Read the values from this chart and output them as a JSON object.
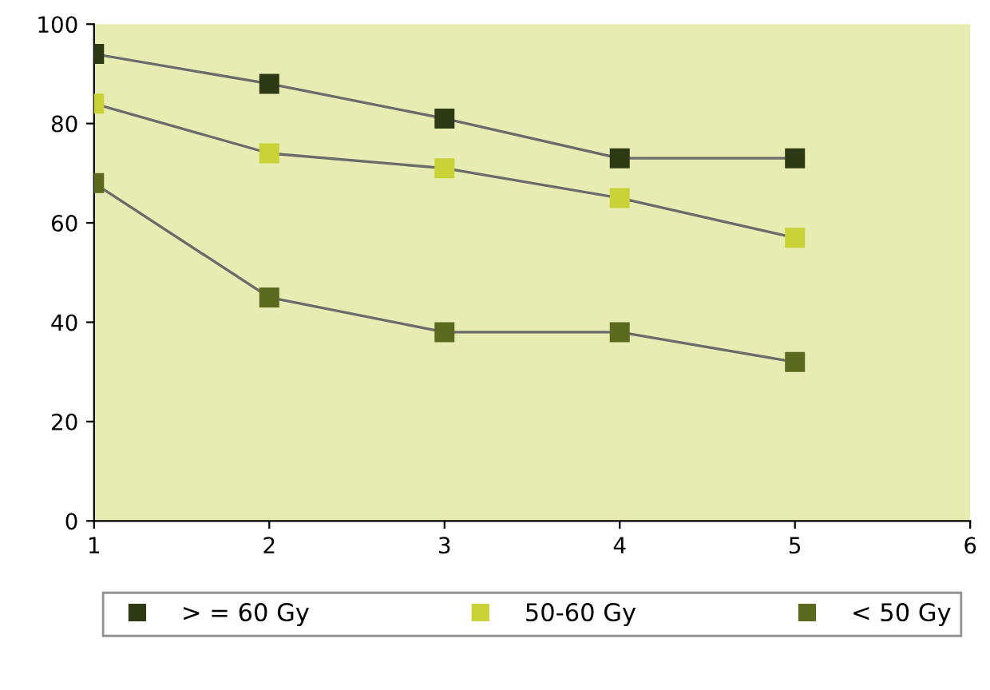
{
  "chart_data": {
    "type": "line",
    "x": [
      1,
      2,
      3,
      4,
      5
    ],
    "xlim": [
      1,
      6
    ],
    "xticks": [
      1,
      2,
      3,
      4,
      5,
      6
    ],
    "ylim": [
      0,
      100
    ],
    "yticks": [
      0,
      20,
      40,
      60,
      80,
      100
    ],
    "grid": false,
    "legend": "bottom",
    "marker": "square",
    "line_style": "solid",
    "series": [
      {
        "name": "> = 60 Gy",
        "color": "#2e3a14",
        "values": [
          94,
          88,
          81,
          73,
          73
        ]
      },
      {
        "name": "50-60 Gy",
        "color": "#c9d236",
        "values": [
          84,
          74,
          71,
          65,
          57
        ]
      },
      {
        "name": "< 50 Gy",
        "color": "#5b6a1e",
        "values": [
          68,
          45,
          38,
          38,
          32
        ]
      }
    ]
  }
}
